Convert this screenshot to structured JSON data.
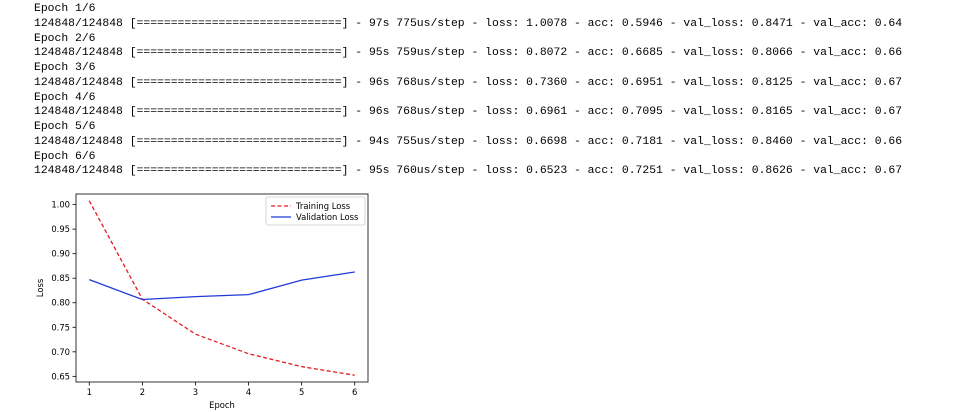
{
  "training_log": [
    {
      "epoch_label": "Epoch 1/6",
      "progress_text": "124848/124848 [==============================] - 97s 775us/step - loss: 1.0078 - acc: 0.5946 - val_loss: 0.8471 - val_acc: 0.64"
    },
    {
      "epoch_label": "Epoch 2/6",
      "progress_text": "124848/124848 [==============================] - 95s 759us/step - loss: 0.8072 - acc: 0.6685 - val_loss: 0.8066 - val_acc: 0.66"
    },
    {
      "epoch_label": "Epoch 3/6",
      "progress_text": "124848/124848 [==============================] - 96s 768us/step - loss: 0.7360 - acc: 0.6951 - val_loss: 0.8125 - val_acc: 0.67"
    },
    {
      "epoch_label": "Epoch 4/6",
      "progress_text": "124848/124848 [==============================] - 96s 768us/step - loss: 0.6961 - acc: 0.7095 - val_loss: 0.8165 - val_acc: 0.67"
    },
    {
      "epoch_label": "Epoch 5/6",
      "progress_text": "124848/124848 [==============================] - 94s 755us/step - loss: 0.6698 - acc: 0.7181 - val_loss: 0.8460 - val_acc: 0.66"
    },
    {
      "epoch_label": "Epoch 6/6",
      "progress_text": "124848/124848 [==============================] - 95s 760us/step - loss: 0.6523 - acc: 0.7251 - val_loss: 0.8626 - val_acc: 0.67"
    }
  ],
  "chart_data": {
    "type": "line",
    "title": "",
    "xlabel": "Epoch",
    "ylabel": "Loss",
    "x": [
      1,
      2,
      3,
      4,
      5,
      6
    ],
    "xticks": [
      "1",
      "2",
      "3",
      "4",
      "5",
      "6"
    ],
    "yticks": [
      "0.65",
      "0.70",
      "0.75",
      "0.80",
      "0.85",
      "0.90",
      "0.95",
      "1.00"
    ],
    "ytick_values": [
      0.65,
      0.7,
      0.75,
      0.8,
      0.85,
      0.9,
      0.95,
      1.0
    ],
    "ylim": [
      0.6385,
      1.0216
    ],
    "xlim": [
      0.75,
      6.25
    ],
    "grid": false,
    "legend_position": "top-right",
    "series": [
      {
        "name": "Training Loss",
        "values": [
          1.0078,
          0.8072,
          0.736,
          0.6961,
          0.6698,
          0.6523
        ],
        "color": "#e31a1c",
        "style": "dashed"
      },
      {
        "name": "Validation Loss",
        "values": [
          0.8471,
          0.8066,
          0.8125,
          0.8165,
          0.846,
          0.8626
        ],
        "color": "#1f3ad6",
        "style": "solid"
      }
    ]
  }
}
